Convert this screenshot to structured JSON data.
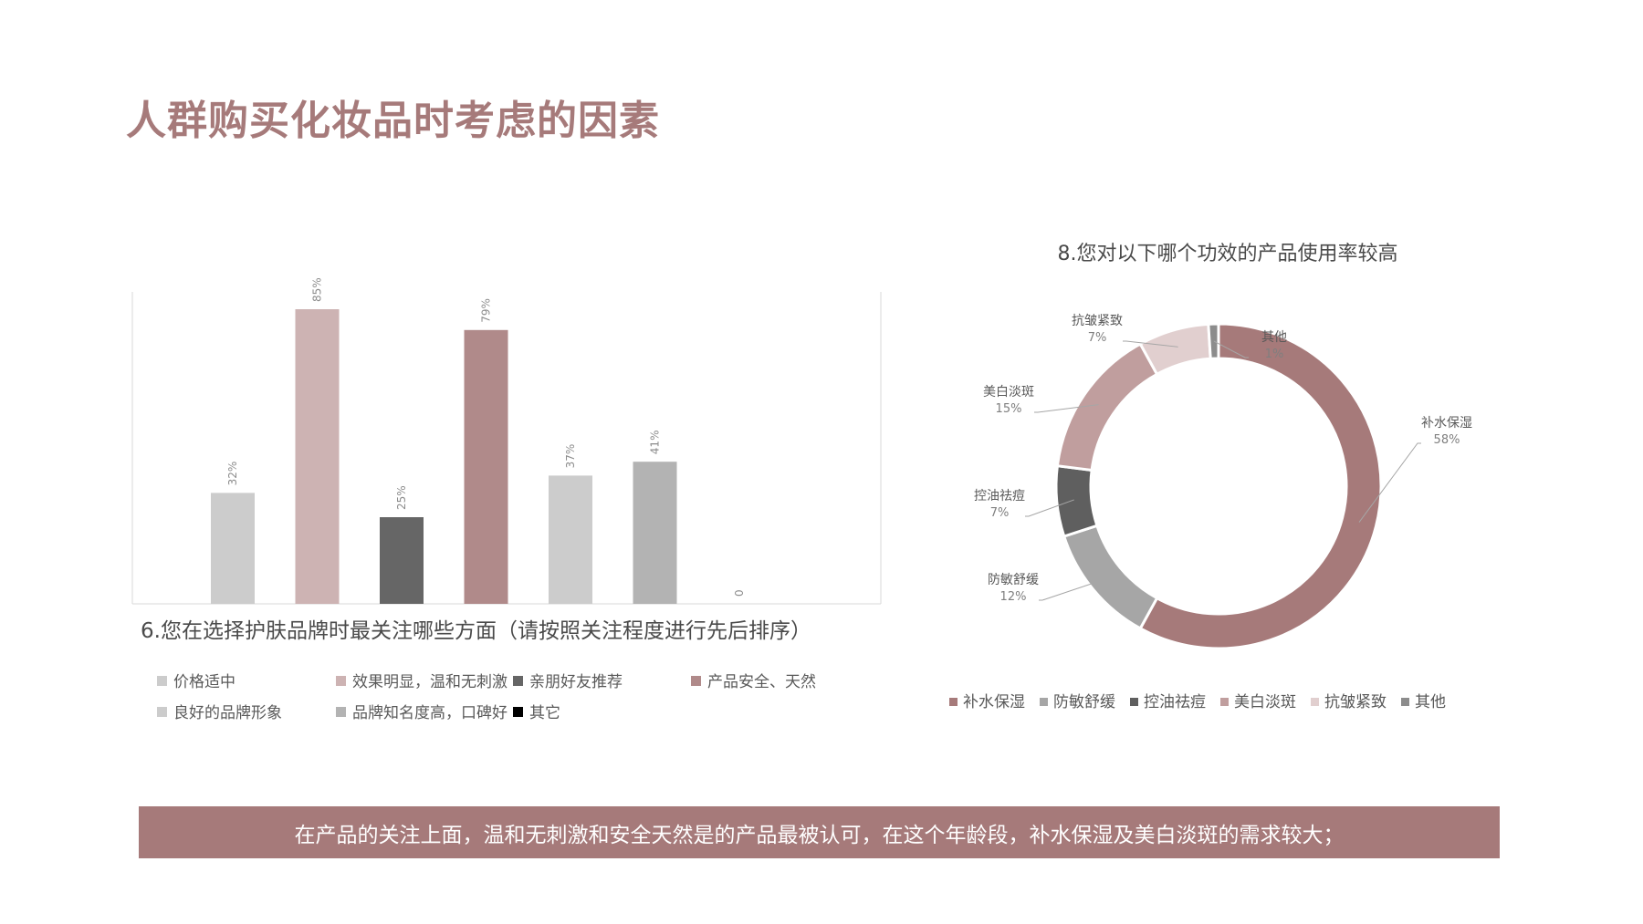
{
  "page": {
    "title": "人群购买化妆品时考虑的因素"
  },
  "bar_chart": {
    "title": "6.您在选择护肤品牌时最关注哪些方面（请按照关注程度进行先后排序）"
  },
  "pie_chart": {
    "title": "8.您对以下哪个功效的产品使用率较高"
  },
  "summary": {
    "text": "在产品的关注上面，温和无刺激和安全天然是的产品最被认可，在这个年龄段，补水保湿及美白淡斑的需求较大；"
  },
  "chart_data": [
    {
      "type": "bar",
      "categories": [
        "价格适中",
        "效果明显，温和无刺激",
        "亲朋好友推荐",
        "产品安全、天然",
        "良好的品牌形象",
        "品牌知名度高，口碑好",
        "其它"
      ],
      "values": [
        32,
        85,
        25,
        79,
        37,
        41,
        0
      ],
      "data_labels": [
        "32%",
        "85%",
        "25%",
        "79%",
        "37%",
        "41%",
        "0"
      ],
      "colors": [
        "#cccccc",
        "#cdb3b3",
        "#666666",
        "#b08a8a",
        "#cccccc",
        "#b3b3b3",
        "#000000"
      ],
      "ylim": [
        0,
        90
      ],
      "grid": false,
      "legend": "bottom",
      "title": "6.您在选择护肤品牌时最关注哪些方面（请按照关注程度进行先后排序）"
    },
    {
      "type": "pie",
      "donut": true,
      "categories": [
        "补水保湿",
        "防敏舒缓",
        "控油祛痘",
        "美白淡斑",
        "抗皱紧致",
        "其他"
      ],
      "values": [
        58,
        12,
        7,
        15,
        7,
        1
      ],
      "data_labels": [
        "58%",
        "12%",
        "7%",
        "15%",
        "7%",
        "1%"
      ],
      "colors": [
        "#a67a7a",
        "#a6a6a6",
        "#5f5f5f",
        "#c09e9e",
        "#e1cfcf",
        "#8c8c8c"
      ],
      "legend": "bottom",
      "title": "8.您对以下哪个功效的产品使用率较高"
    }
  ]
}
